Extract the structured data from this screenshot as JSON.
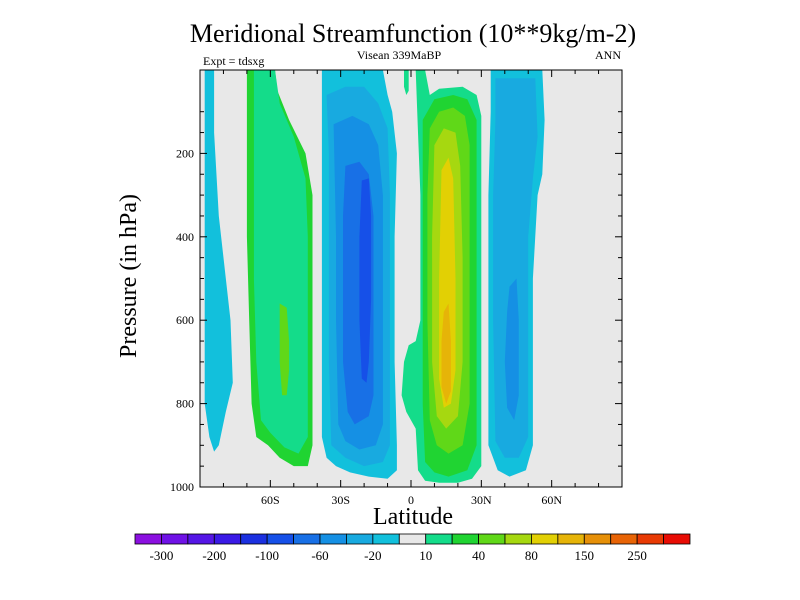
{
  "chart_data": {
    "type": "heatmap",
    "title": "Meridional Streamfunction (10**9kg/m-2)",
    "left_label": "Expt = tdsxg",
    "center_label": "Visean 339MaBP",
    "right_label": "ANN",
    "xlabel": "Latitude",
    "ylabel": "Pressure (in hPa)",
    "xlim": [
      -90,
      90
    ],
    "ylim": [
      1000,
      0
    ],
    "x_ticks": [
      {
        "value": -60,
        "label": "60S"
      },
      {
        "value": -30,
        "label": "30S"
      },
      {
        "value": 0,
        "label": "0"
      },
      {
        "value": 30,
        "label": "30N"
      },
      {
        "value": 60,
        "label": "60N"
      }
    ],
    "y_ticks": [
      {
        "value": 200,
        "label": "200"
      },
      {
        "value": 400,
        "label": "400"
      },
      {
        "value": 600,
        "label": "600"
      },
      {
        "value": 800,
        "label": "800"
      },
      {
        "value": 1000,
        "label": "1000"
      }
    ],
    "colorbar": {
      "levels": [
        -300,
        -250,
        -200,
        -150,
        -100,
        -80,
        -60,
        -40,
        -20,
        -10,
        10,
        20,
        40,
        60,
        80,
        100,
        150,
        200,
        250,
        300
      ],
      "labels": [
        "-300",
        "-200",
        "-100",
        "-60",
        "-20",
        "10",
        "40",
        "80",
        "150",
        "250"
      ],
      "colors": [
        "#8b10e0",
        "#6f12e6",
        "#5516e6",
        "#3a1ae6",
        "#1b30e0",
        "#1650e8",
        "#1870e6",
        "#1590e4",
        "#18aae0",
        "#12c0dc",
        "#e8e8e8",
        "#14dc8a",
        "#20d432",
        "#60d818",
        "#a6d810",
        "#e2d004",
        "#e6b408",
        "#e69008",
        "#e86406",
        "#e83a04",
        "#e80c04"
      ]
    },
    "cells": [
      {
        "name": "sh-polar-weak-cell",
        "value_range": [
          -20,
          -10
        ],
        "level": 9,
        "region": [
          [
            -88,
            0
          ],
          [
            -84,
            0
          ],
          [
            -84,
            150
          ],
          [
            -82,
            350
          ],
          [
            -77,
            600
          ],
          [
            -76,
            750
          ],
          [
            -79,
            820
          ],
          [
            -82,
            900
          ],
          [
            -84,
            915
          ],
          [
            -86,
            880
          ],
          [
            -88,
            800
          ]
        ]
      },
      {
        "name": "sh-ferrel-cell",
        "value": 40,
        "level": 12,
        "region": [
          [
            -70,
            0
          ],
          [
            -58,
            0
          ],
          [
            -57,
            50
          ],
          [
            -52,
            120
          ],
          [
            -45,
            200
          ],
          [
            -42,
            300
          ],
          [
            -42,
            500
          ],
          [
            -42,
            700
          ],
          [
            -42,
            900
          ],
          [
            -44,
            950
          ],
          [
            -50,
            950
          ],
          [
            -56,
            930
          ],
          [
            -61,
            900
          ],
          [
            -66,
            880
          ],
          [
            -68,
            800
          ],
          [
            -69,
            600
          ],
          [
            -70,
            400
          ],
          [
            -70,
            200
          ]
        ]
      },
      {
        "name": "sh-ferrel-cell-20",
        "value": 20,
        "level": 11,
        "region": [
          [
            -67,
            0
          ],
          [
            -58,
            0
          ],
          [
            -56,
            80
          ],
          [
            -50,
            160
          ],
          [
            -45,
            260
          ],
          [
            -44,
            400
          ],
          [
            -44,
            600
          ],
          [
            -44,
            880
          ],
          [
            -48,
            920
          ],
          [
            -54,
            905
          ],
          [
            -60,
            870
          ],
          [
            -64,
            840
          ],
          [
            -66,
            700
          ],
          [
            -67,
            500
          ],
          [
            -67,
            300
          ]
        ]
      },
      {
        "name": "sh-ferrel-cell-core",
        "value": 60,
        "level": 13,
        "region": [
          [
            -56,
            560
          ],
          [
            -53,
            570
          ],
          [
            -52,
            650
          ],
          [
            -52,
            720
          ],
          [
            -53,
            780
          ],
          [
            -55,
            780
          ],
          [
            -56,
            700
          ]
        ]
      },
      {
        "name": "sh-hadley-cell-10",
        "value": -10,
        "level": 9,
        "region": [
          [
            -38,
            0
          ],
          [
            -12,
            0
          ],
          [
            -10,
            60
          ],
          [
            -8,
            100
          ],
          [
            -6,
            200
          ],
          [
            -7,
            400
          ],
          [
            -7,
            700
          ],
          [
            -6,
            900
          ],
          [
            -6,
            960
          ],
          [
            -10,
            980
          ],
          [
            -18,
            975
          ],
          [
            -26,
            965
          ],
          [
            -32,
            950
          ],
          [
            -36,
            930
          ],
          [
            -38,
            880
          ],
          [
            -38,
            600
          ],
          [
            -38,
            300
          ]
        ]
      },
      {
        "name": "sh-hadley-cell-20",
        "value": -20,
        "level": 8,
        "region": [
          [
            -36,
            60
          ],
          [
            -28,
            40
          ],
          [
            -20,
            40
          ],
          [
            -14,
            80
          ],
          [
            -10,
            140
          ],
          [
            -9,
            300
          ],
          [
            -9,
            500
          ],
          [
            -9,
            900
          ],
          [
            -12,
            940
          ],
          [
            -20,
            950
          ],
          [
            -28,
            930
          ],
          [
            -34,
            900
          ],
          [
            -35,
            700
          ],
          [
            -35,
            400
          ],
          [
            -35,
            200
          ]
        ]
      },
      {
        "name": "sh-hadley-cell-40",
        "value": -40,
        "level": 7,
        "region": [
          [
            -33,
            130
          ],
          [
            -25,
            110
          ],
          [
            -18,
            130
          ],
          [
            -14,
            180
          ],
          [
            -12,
            300
          ],
          [
            -12,
            600
          ],
          [
            -12,
            850
          ],
          [
            -15,
            900
          ],
          [
            -22,
            910
          ],
          [
            -28,
            890
          ],
          [
            -31,
            850
          ],
          [
            -32,
            600
          ],
          [
            -32,
            400
          ]
        ]
      },
      {
        "name": "sh-hadley-cell-60",
        "value": -60,
        "level": 6,
        "region": [
          [
            -28,
            230
          ],
          [
            -22,
            220
          ],
          [
            -18,
            250
          ],
          [
            -16,
            350
          ],
          [
            -16,
            600
          ],
          [
            -16,
            780
          ],
          [
            -18,
            830
          ],
          [
            -24,
            850
          ],
          [
            -27,
            820
          ],
          [
            -29,
            700
          ],
          [
            -29,
            500
          ],
          [
            -29,
            350
          ]
        ]
      },
      {
        "name": "sh-hadley-core",
        "value": -80,
        "level": 5,
        "region": [
          [
            -21,
            265
          ],
          [
            -18,
            260
          ],
          [
            -17,
            350
          ],
          [
            -17,
            550
          ],
          [
            -18,
            700
          ],
          [
            -19,
            750
          ],
          [
            -21,
            740
          ],
          [
            -22,
            600
          ],
          [
            -22,
            400
          ]
        ]
      },
      {
        "name": "nh-hadley-cell-10",
        "value": 10,
        "level": 11,
        "region": [
          [
            2,
            0
          ],
          [
            6,
            0
          ],
          [
            8,
            60
          ],
          [
            12,
            45
          ],
          [
            22,
            40
          ],
          [
            28,
            60
          ],
          [
            30,
            110
          ],
          [
            30,
            200
          ],
          [
            30,
            400
          ],
          [
            30,
            700
          ],
          [
            30,
            950
          ],
          [
            26,
            980
          ],
          [
            20,
            990
          ],
          [
            12,
            990
          ],
          [
            6,
            985
          ],
          [
            3,
            960
          ],
          [
            2,
            860
          ],
          [
            -2,
            820
          ],
          [
            -4,
            780
          ],
          [
            -3,
            700
          ],
          [
            -1,
            660
          ],
          [
            2,
            650
          ],
          [
            4,
            600
          ],
          [
            4,
            500
          ],
          [
            4,
            300
          ],
          [
            3,
            150
          ]
        ]
      },
      {
        "name": "nh-hadley-cell-20",
        "value": 20,
        "level": 12,
        "region": [
          [
            5,
            120
          ],
          [
            10,
            70
          ],
          [
            18,
            60
          ],
          [
            24,
            70
          ],
          [
            28,
            120
          ],
          [
            28,
            300
          ],
          [
            28,
            600
          ],
          [
            28,
            900
          ],
          [
            24,
            960
          ],
          [
            16,
            975
          ],
          [
            10,
            965
          ],
          [
            6,
            940
          ],
          [
            5,
            800
          ],
          [
            5,
            500
          ],
          [
            5,
            300
          ]
        ]
      },
      {
        "name": "nh-hadley-cell-40",
        "value": 40,
        "level": 13,
        "region": [
          [
            8,
            140
          ],
          [
            12,
            100
          ],
          [
            18,
            90
          ],
          [
            23,
            110
          ],
          [
            25,
            180
          ],
          [
            25,
            450
          ],
          [
            25,
            800
          ],
          [
            22,
            900
          ],
          [
            16,
            920
          ],
          [
            11,
            900
          ],
          [
            8,
            840
          ],
          [
            7,
            600
          ],
          [
            7,
            300
          ]
        ]
      },
      {
        "name": "nh-hadley-cell-80",
        "value": 80,
        "level": 14,
        "region": [
          [
            10,
            180
          ],
          [
            14,
            140
          ],
          [
            19,
            150
          ],
          [
            21,
            230
          ],
          [
            22,
            450
          ],
          [
            22,
            700
          ],
          [
            20,
            830
          ],
          [
            15,
            860
          ],
          [
            11,
            830
          ],
          [
            9,
            700
          ],
          [
            9,
            400
          ]
        ]
      },
      {
        "name": "nh-hadley-core",
        "value": 100,
        "level": 15,
        "region": [
          [
            13,
            240
          ],
          [
            16,
            210
          ],
          [
            18,
            260
          ],
          [
            19,
            500
          ],
          [
            19,
            720
          ],
          [
            17,
            800
          ],
          [
            14,
            810
          ],
          [
            12,
            740
          ],
          [
            12,
            500
          ]
        ]
      },
      {
        "name": "nh-hadley-core-max",
        "value": 150,
        "level": 16,
        "region": [
          [
            14,
            580
          ],
          [
            16,
            560
          ],
          [
            17,
            650
          ],
          [
            17,
            770
          ],
          [
            15,
            800
          ],
          [
            13,
            760
          ],
          [
            13,
            650
          ]
        ]
      },
      {
        "name": "equator-small-cell",
        "value": 10,
        "level": 11,
        "region": [
          [
            -3,
            0
          ],
          [
            -1,
            0
          ],
          [
            -1,
            50
          ],
          [
            -2,
            60
          ],
          [
            -3,
            40
          ]
        ]
      },
      {
        "name": "nh-ferrel-cell-10",
        "value": -10,
        "level": 9,
        "region": [
          [
            34,
            0
          ],
          [
            56,
            0
          ],
          [
            57,
            120
          ],
          [
            56,
            250
          ],
          [
            54,
            300
          ],
          [
            52,
            500
          ],
          [
            52,
            700
          ],
          [
            52,
            900
          ],
          [
            49,
            960
          ],
          [
            42,
            975
          ],
          [
            37,
            960
          ],
          [
            33,
            900
          ],
          [
            33,
            600
          ],
          [
            33,
            300
          ],
          [
            34,
            100
          ]
        ]
      },
      {
        "name": "nh-ferrel-cell-20",
        "value": -20,
        "level": 8,
        "region": [
          [
            36,
            20
          ],
          [
            53,
            20
          ],
          [
            54,
            160
          ],
          [
            52,
            260
          ],
          [
            50,
            400
          ],
          [
            50,
            700
          ],
          [
            50,
            880
          ],
          [
            46,
            930
          ],
          [
            40,
            930
          ],
          [
            36,
            890
          ],
          [
            35,
            600
          ],
          [
            35,
            300
          ],
          [
            36,
            120
          ]
        ]
      },
      {
        "name": "nh-ferrel-cell-40",
        "value": -40,
        "level": 7,
        "region": [
          [
            42,
            520
          ],
          [
            45,
            500
          ],
          [
            46,
            600
          ],
          [
            46,
            780
          ],
          [
            44,
            840
          ],
          [
            41,
            810
          ],
          [
            40,
            700
          ],
          [
            41,
            580
          ]
        ]
      }
    ]
  }
}
